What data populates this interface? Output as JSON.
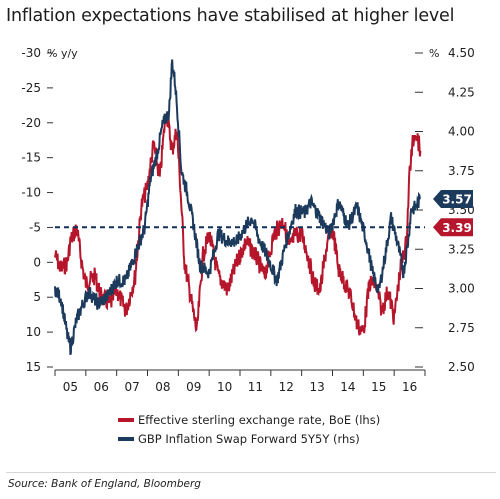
{
  "title": "Inflation expectations have stabilised at higher level",
  "source": "Source: Bank of England, Bloomberg",
  "colors": {
    "red": "#b5162b",
    "navy": "#1b3a5c",
    "axis": "#333333"
  },
  "chart_data": {
    "type": "line",
    "title": "Inflation expectations have stabilised at higher level",
    "y_left": {
      "label": "% y/y",
      "ticks": [
        "-30",
        "-25",
        "-20",
        "-15",
        "-10",
        "-5",
        "0",
        "5",
        "10",
        "15"
      ],
      "min": 15,
      "max": -30,
      "inverted": true
    },
    "y_right": {
      "label": "%",
      "ticks": [
        "4.50",
        "4.25",
        "4.00",
        "3.75",
        "3.50",
        "3.25",
        "3.00",
        "2.75",
        "2.50"
      ],
      "min": 2.5,
      "max": 4.5
    },
    "x_ticks": [
      "05",
      "06",
      "07",
      "08",
      "09",
      "10",
      "11",
      "12",
      "13",
      "14",
      "15",
      "16"
    ],
    "x_range": [
      2005.0,
      2017.0
    ],
    "reference_line": {
      "value": 3.39,
      "axis": "right",
      "style": "dashed"
    },
    "series": [
      {
        "name": "Effective sterling exchange rate, BoE (lhs)",
        "axis": "left",
        "color": "#b5162b",
        "x": [
          2005.0,
          2005.2,
          2005.4,
          2005.5,
          2005.7,
          2005.9,
          2006.0,
          2006.3,
          2006.5,
          2006.8,
          2007.0,
          2007.3,
          2007.6,
          2007.8,
          2008.0,
          2008.2,
          2008.4,
          2008.6,
          2008.8,
          2008.95,
          2009.05,
          2009.2,
          2009.4,
          2009.6,
          2009.8,
          2010.0,
          2010.3,
          2010.6,
          2010.9,
          2011.2,
          2011.5,
          2011.8,
          2012.1,
          2012.4,
          2012.6,
          2012.8,
          2013.0,
          2013.2,
          2013.4,
          2013.6,
          2013.8,
          2014.0,
          2014.2,
          2014.4,
          2014.6,
          2014.8,
          2015.0,
          2015.2,
          2015.4,
          2015.6,
          2015.8,
          2016.0,
          2016.2,
          2016.4,
          2016.5,
          2016.6,
          2016.7,
          2016.85
        ],
        "y": [
          -1,
          1,
          0,
          -3,
          -5,
          1,
          3,
          2,
          5,
          6,
          4,
          7,
          2,
          -8,
          -11,
          -17,
          -12,
          -22,
          -16,
          -19,
          -12,
          0,
          5,
          10,
          -1,
          -4,
          2,
          4,
          0,
          -3,
          -1,
          2,
          -4,
          -6,
          -2,
          -4,
          -4,
          -1,
          3,
          4,
          -2,
          -5,
          1,
          3,
          5,
          9,
          10,
          3,
          3,
          7,
          4,
          8,
          1,
          -3,
          -13,
          -17,
          -19,
          -16
        ]
      },
      {
        "name": "GBP Inflation Swap Forward 5Y5Y (rhs)",
        "axis": "right",
        "color": "#1b3a5c",
        "x": [
          2005.0,
          2005.2,
          2005.4,
          2005.5,
          2005.7,
          2005.9,
          2006.1,
          2006.4,
          2006.7,
          2007.0,
          2007.3,
          2007.6,
          2007.9,
          2008.1,
          2008.3,
          2008.5,
          2008.7,
          2008.8,
          2008.9,
          2009.0,
          2009.1,
          2009.3,
          2009.5,
          2009.7,
          2010.0,
          2010.3,
          2010.6,
          2010.9,
          2011.2,
          2011.4,
          2011.6,
          2011.9,
          2012.2,
          2012.5,
          2012.8,
          2013.1,
          2013.3,
          2013.6,
          2013.9,
          2014.2,
          2014.5,
          2014.8,
          2015.1,
          2015.3,
          2015.5,
          2015.7,
          2015.9,
          2016.1,
          2016.3,
          2016.45,
          2016.55,
          2016.7,
          2016.85
        ],
        "y": [
          3.0,
          2.93,
          2.7,
          2.62,
          2.8,
          2.9,
          2.98,
          2.9,
          2.95,
          3.05,
          3.05,
          3.22,
          3.38,
          3.7,
          3.85,
          4.05,
          4.12,
          4.45,
          4.3,
          4.05,
          3.75,
          3.6,
          3.4,
          3.15,
          3.1,
          3.35,
          3.3,
          3.3,
          3.4,
          3.45,
          3.32,
          3.2,
          3.05,
          3.3,
          3.5,
          3.48,
          3.55,
          3.45,
          3.35,
          3.55,
          3.4,
          3.52,
          3.3,
          3.1,
          2.98,
          3.2,
          3.45,
          3.3,
          3.1,
          3.3,
          3.5,
          3.52,
          3.57
        ]
      }
    ],
    "end_labels": [
      {
        "value": "3.57",
        "color": "#1b3a5c"
      },
      {
        "value": "3.39",
        "color": "#b5162b"
      }
    ],
    "legend": {
      "placement": "bottom-center"
    }
  }
}
